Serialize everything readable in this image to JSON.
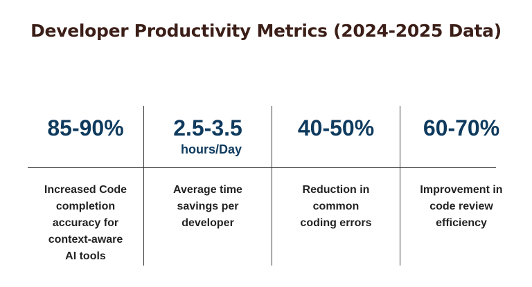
{
  "title": "Developer Productivity Metrics (2024-2025 Data)",
  "metrics": [
    {
      "value": "85-90%",
      "unit": "",
      "description": "Increased Code\ncompletion\naccuracy  for\ncontext-aware\nAI tools"
    },
    {
      "value": "2.5-3.5",
      "unit": "hours/Day",
      "description": "Average time\nsavings per\ndeveloper"
    },
    {
      "value": "40-50%",
      "unit": "",
      "description": "Reduction in\ncommon\ncoding errors"
    },
    {
      "value": "60-70%",
      "unit": "",
      "description": "Improvement in\ncode review\nefficiency"
    }
  ]
}
